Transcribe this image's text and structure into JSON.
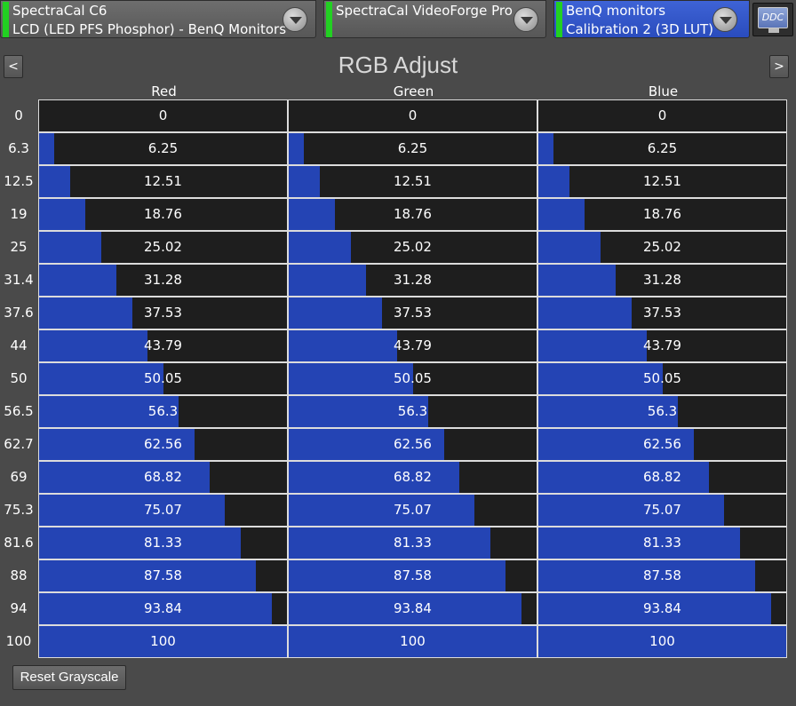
{
  "toolbar": {
    "panel1": {
      "line1": "SpectraCal C6",
      "line2": "LCD (LED PFS Phosphor) - BenQ Monitors"
    },
    "panel2": {
      "line1": "SpectraCal VideoForge Pro"
    },
    "panel3": {
      "line1": "BenQ monitors",
      "line2": "Calibration 2 (3D LUT)"
    },
    "ddc_label": "DDC"
  },
  "header": {
    "title": "RGB Adjust",
    "prev_label": "<",
    "next_label": ">"
  },
  "columns": [
    "Red",
    "Green",
    "Blue"
  ],
  "colors": {
    "fill": "#2444b4",
    "cell_bg": "#1e1e1e",
    "status_led": "#22d022"
  },
  "rows": [
    {
      "label": "0",
      "value": "0",
      "fill": 0
    },
    {
      "label": "6.3",
      "value": "6.25",
      "fill": 0.0625
    },
    {
      "label": "12.5",
      "value": "12.51",
      "fill": 0.1251
    },
    {
      "label": "19",
      "value": "18.76",
      "fill": 0.1876
    },
    {
      "label": "25",
      "value": "25.02",
      "fill": 0.2502
    },
    {
      "label": "31.4",
      "value": "31.28",
      "fill": 0.3128
    },
    {
      "label": "37.6",
      "value": "37.53",
      "fill": 0.3753
    },
    {
      "label": "44",
      "value": "43.79",
      "fill": 0.4379
    },
    {
      "label": "50",
      "value": "50.05",
      "fill": 0.5005
    },
    {
      "label": "56.5",
      "value": "56.3",
      "fill": 0.563
    },
    {
      "label": "62.7",
      "value": "62.56",
      "fill": 0.6256
    },
    {
      "label": "69",
      "value": "68.82",
      "fill": 0.6882
    },
    {
      "label": "75.3",
      "value": "75.07",
      "fill": 0.7507
    },
    {
      "label": "81.6",
      "value": "81.33",
      "fill": 0.8133
    },
    {
      "label": "88",
      "value": "87.58",
      "fill": 0.8758
    },
    {
      "label": "94",
      "value": "93.84",
      "fill": 0.9384
    },
    {
      "label": "100",
      "value": "100",
      "fill": 1.0
    }
  ],
  "footer": {
    "reset_label": "Reset Grayscale"
  }
}
